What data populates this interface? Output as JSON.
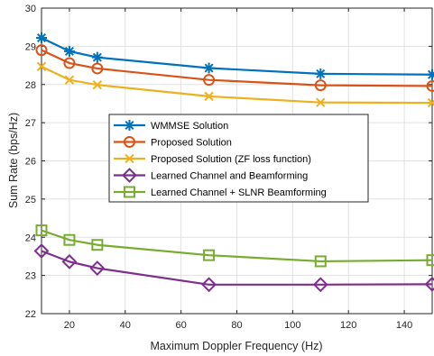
{
  "chart_data": {
    "type": "line",
    "xlabel": "Maximum Doppler Frequency (Hz)",
    "ylabel": "Sum Rate (bps/Hz)",
    "xlim": [
      10,
      150
    ],
    "ylim": [
      22,
      30
    ],
    "xticks": [
      20,
      40,
      60,
      80,
      100,
      120,
      140
    ],
    "yticks": [
      22,
      23,
      24,
      25,
      26,
      27,
      28,
      29,
      30
    ],
    "grid": true,
    "legend_position": "center",
    "x": [
      10,
      20,
      30,
      70,
      110,
      150
    ],
    "series": [
      {
        "name": "WMMSE Solution",
        "color": "#0072BD",
        "marker": "asterisk",
        "values": [
          29.22,
          28.87,
          28.71,
          28.43,
          28.28,
          28.26
        ]
      },
      {
        "name": "Proposed Solution",
        "color": "#D95319",
        "marker": "circle",
        "values": [
          28.9,
          28.56,
          28.42,
          28.12,
          27.98,
          27.96
        ]
      },
      {
        "name": "Proposed Solution (ZF loss function)",
        "color": "#EDB120",
        "marker": "x",
        "values": [
          28.47,
          28.12,
          27.99,
          27.69,
          27.53,
          27.52
        ]
      },
      {
        "name": "Learned Channel and Beamforming",
        "color": "#7E2F8E",
        "marker": "diamond",
        "values": [
          23.64,
          23.36,
          23.19,
          22.76,
          22.76,
          22.77
        ]
      },
      {
        "name": "Learned Channel + SLNR Beamforming",
        "color": "#77AC30",
        "marker": "square",
        "values": [
          24.18,
          23.93,
          23.8,
          23.53,
          23.37,
          23.4
        ]
      }
    ]
  }
}
